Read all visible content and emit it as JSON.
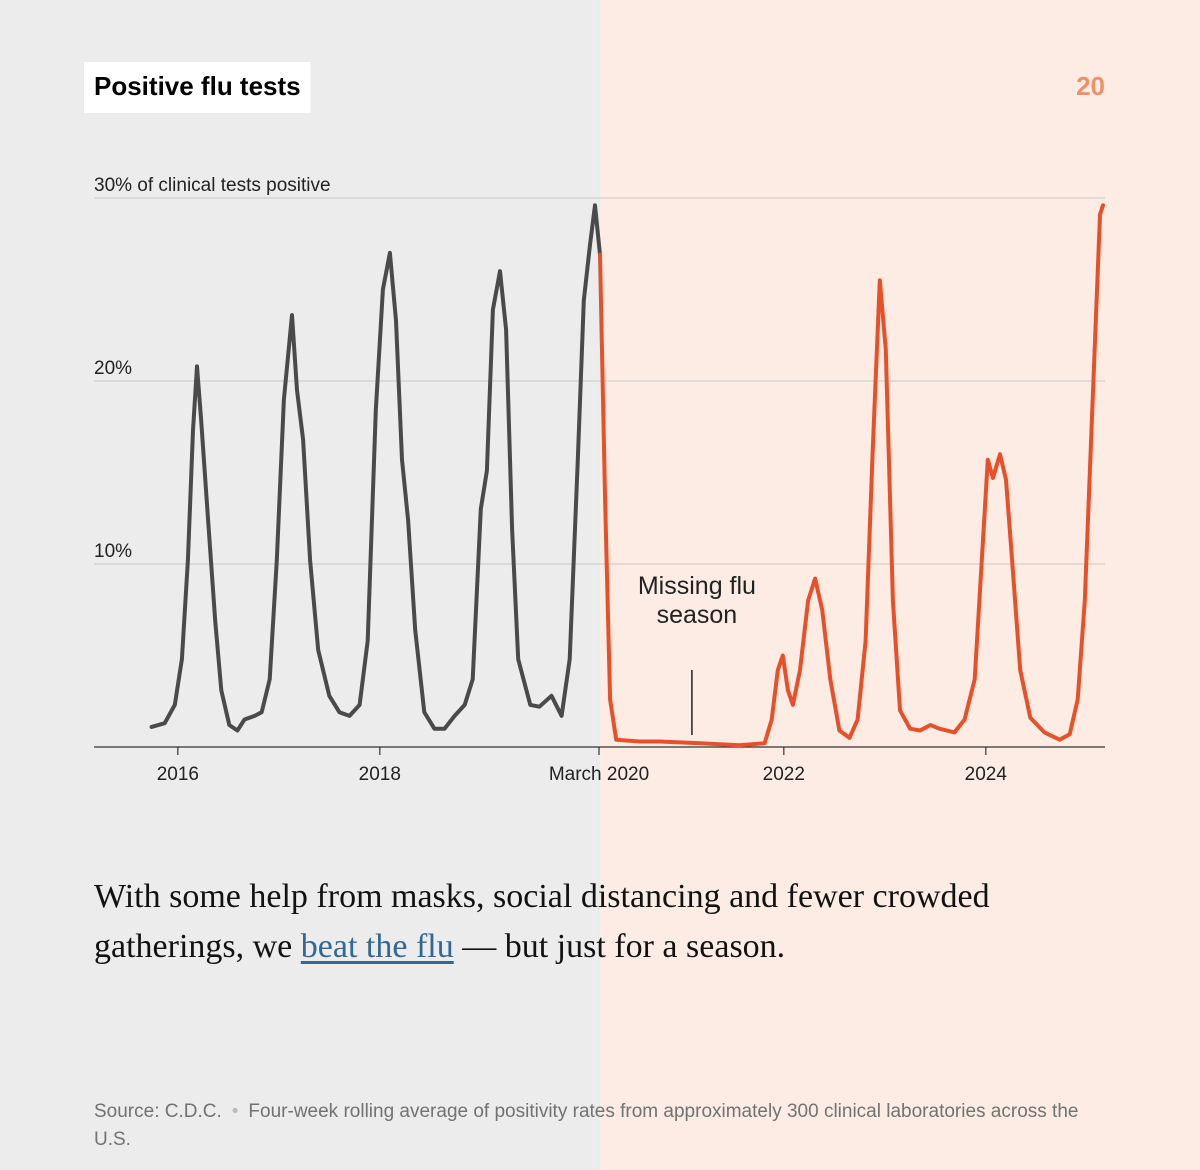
{
  "chart_data": {
    "type": "line",
    "title": "Positive flu tests",
    "xlim": [
      2015.17,
      2025.18
    ],
    "xticks": [
      2016,
      2018,
      {
        "value": 2020.17,
        "label": "March 2020"
      },
      2022,
      2024
    ],
    "ylim": [
      0,
      30
    ],
    "yticks": [
      {
        "value": 10,
        "label": "10%"
      },
      {
        "value": 20,
        "label": "20%"
      },
      {
        "value": 30,
        "label": "30% of clinical tests positive"
      }
    ],
    "grid": true,
    "series": [
      {
        "color": "#4a4a4a",
        "x": [
          2015.74,
          2015.87,
          2015.97,
          2016.04,
          2016.1,
          2016.15,
          2016.19,
          2016.23,
          2016.3,
          2016.37,
          2016.43,
          2016.51,
          2016.59,
          2016.66,
          2016.76,
          2016.83,
          2016.91,
          2016.98,
          2017.05,
          2017.13,
          2017.18,
          2017.24,
          2017.31,
          2017.39,
          2017.5,
          2017.6,
          2017.7,
          2017.8,
          2017.88,
          2017.96,
          2018.03,
          2018.1,
          2018.16,
          2018.22,
          2018.28,
          2018.35,
          2018.44,
          2018.54,
          2018.64,
          2018.74,
          2018.84,
          2018.92,
          2019.0,
          2019.06,
          2019.12,
          2019.19,
          2019.25,
          2019.31,
          2019.37,
          2019.49,
          2019.58,
          2019.7,
          2019.8,
          2019.88,
          2019.96,
          2020.02,
          2020.08,
          2020.13,
          2020.18
        ],
        "values": [
          1.1,
          1.3,
          2.3,
          4.8,
          10.2,
          17.3,
          20.8,
          17.9,
          12.4,
          6.9,
          3.1,
          1.2,
          0.9,
          1.5,
          1.7,
          1.9,
          3.7,
          10.2,
          19.0,
          23.6,
          19.5,
          16.8,
          10.2,
          5.3,
          2.8,
          1.9,
          1.7,
          2.3,
          5.8,
          18.4,
          25.0,
          27.0,
          23.3,
          15.7,
          12.4,
          6.4,
          1.9,
          1.0,
          1.0,
          1.7,
          2.3,
          3.7,
          13.0,
          15.1,
          23.9,
          26.0,
          22.8,
          11.9,
          4.8,
          2.3,
          2.2,
          2.8,
          1.7,
          4.8,
          15.7,
          24.4,
          27.4,
          29.6,
          26.9
        ]
      },
      {
        "color": "#e8502a",
        "x": [
          2020.18,
          2020.23,
          2020.28,
          2020.34,
          2020.57,
          2020.77,
          2021.17,
          2021.56,
          2021.81,
          2021.88,
          2021.94,
          2021.99,
          2022.04,
          2022.09,
          2022.16,
          2022.24,
          2022.31,
          2022.38,
          2022.46,
          2022.55,
          2022.65,
          2022.73,
          2022.81,
          2022.88,
          2022.95,
          2023.01,
          2023.08,
          2023.15,
          2023.25,
          2023.35,
          2023.45,
          2023.54,
          2023.69,
          2023.79,
          2023.89,
          2023.96,
          2024.02,
          2024.07,
          2024.14,
          2024.2,
          2024.26,
          2024.34,
          2024.44,
          2024.58,
          2024.73,
          2024.83,
          2024.91,
          2024.98,
          2025.05,
          2025.13,
          2025.16
        ],
        "values": [
          26.9,
          13.5,
          2.6,
          0.4,
          0.3,
          0.3,
          0.2,
          0.1,
          0.2,
          1.5,
          4.2,
          5.0,
          3.1,
          2.3,
          4.2,
          8.0,
          9.2,
          7.5,
          3.7,
          0.9,
          0.5,
          1.5,
          5.8,
          16.2,
          25.5,
          21.7,
          8.0,
          2.0,
          1.0,
          0.9,
          1.2,
          1.0,
          0.8,
          1.5,
          3.7,
          10.2,
          15.7,
          14.7,
          16.0,
          14.6,
          10.2,
          4.2,
          1.6,
          0.8,
          0.4,
          0.7,
          2.6,
          8.0,
          17.9,
          29.1,
          29.6
        ]
      }
    ],
    "annotations": [
      {
        "text": "Missing flu season",
        "x": 2021.09
      }
    ]
  },
  "page_number": "20",
  "body": {
    "before": "With some help from masks, social distancing and fewer crowded gatherings, we ",
    "link": "beat the flu",
    "after": " — but just for a season."
  },
  "source": {
    "label": "Source: C.D.C.",
    "note": "Four-week rolling average of positivity rates from approximately 300 clinical laboratories across the U.S."
  }
}
